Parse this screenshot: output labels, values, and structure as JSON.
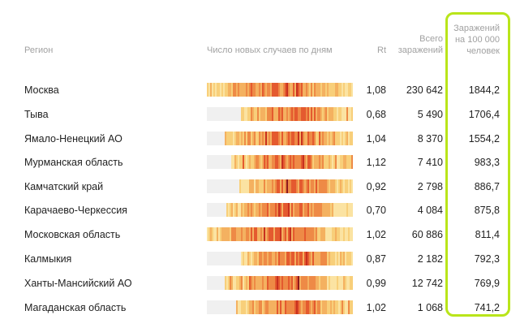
{
  "header": {
    "region": "Регион",
    "cases_by_day": "Число новых случаев по дням",
    "rt": "Rt",
    "total_line1": "Всего",
    "total_line2": "заражений",
    "per100k_line1": "Заражений",
    "per100k_line2": "на 100 000",
    "per100k_line3": "человек"
  },
  "colors": {
    "accent": "#b9e51a",
    "empty": "#f0f0f0",
    "scale": [
      "#fbe3a2",
      "#f8cf7a",
      "#f4b160",
      "#ee8a46",
      "#e45a2f",
      "#c8301f",
      "#8e1a1d"
    ]
  },
  "rows": [
    {
      "region": "Москва",
      "rt": "1,08",
      "total": "230 642",
      "per100k": "1844,2",
      "start": 0.0
    },
    {
      "region": "Тыва",
      "rt": "0,68",
      "total": "5 490",
      "per100k": "1706,4",
      "start": 0.24
    },
    {
      "region": "Ямало-Ненецкий АО",
      "rt": "1,04",
      "total": "8 370",
      "per100k": "1554,2",
      "start": 0.13
    },
    {
      "region": "Мурманская область",
      "rt": "1,12",
      "total": "7 410",
      "per100k": "983,3",
      "start": 0.17
    },
    {
      "region": "Камчатский край",
      "rt": "0,92",
      "total": "2 798",
      "per100k": "886,7",
      "start": 0.23
    },
    {
      "region": "Карачаево-Черкессия",
      "rt": "0,70",
      "total": "4 084",
      "per100k": "875,8",
      "start": 0.14
    },
    {
      "region": "Московская область",
      "rt": "1,02",
      "total": "60 886",
      "per100k": "811,4",
      "start": 0.0
    },
    {
      "region": "Калмыкия",
      "rt": "0,87",
      "total": "2 182",
      "per100k": "792,3",
      "start": 0.24
    },
    {
      "region": "Ханты-Мансийский АО",
      "rt": "0,99",
      "total": "12 742",
      "per100k": "769,9",
      "start": 0.13
    },
    {
      "region": "Магаданская область",
      "rt": "1,02",
      "total": "1 068",
      "per100k": "741,2",
      "start": 0.2
    }
  ]
}
